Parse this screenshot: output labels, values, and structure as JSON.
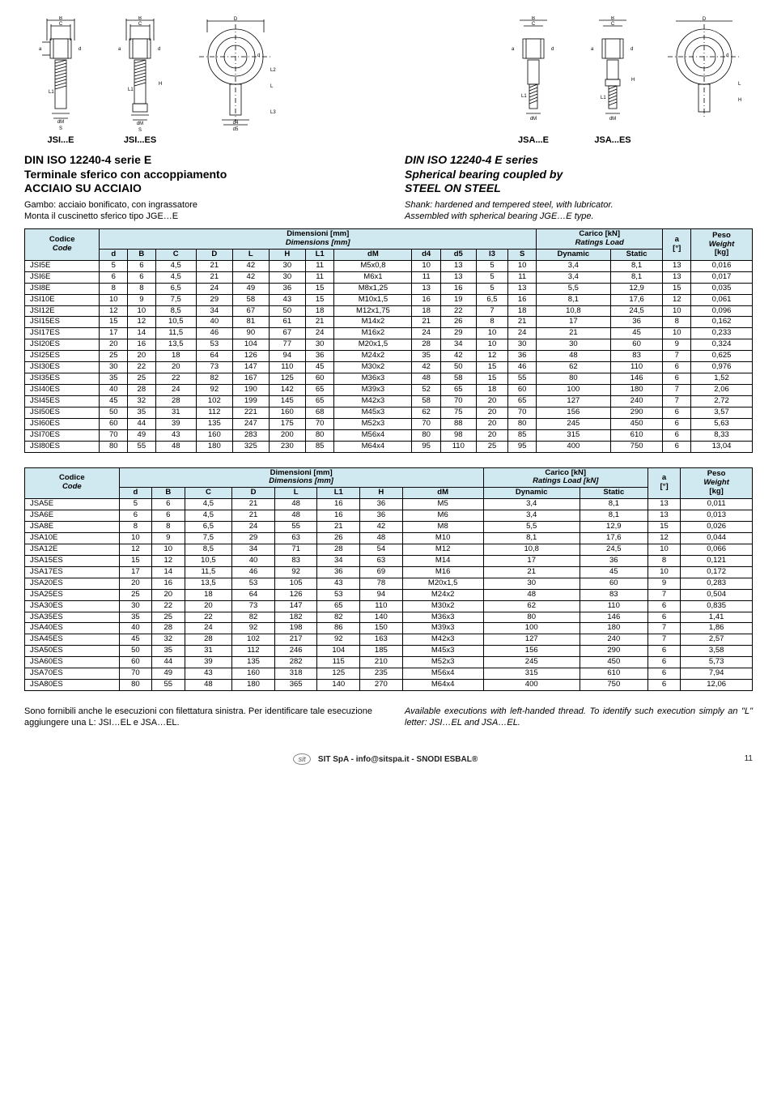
{
  "drawings": {
    "left_labels": [
      "JSI...E",
      "JSI...ES"
    ],
    "right_labels": [
      "JSA...E",
      "JSA...ES"
    ],
    "dim_labels": [
      "B",
      "C",
      "D",
      "d",
      "a",
      "L",
      "L1",
      "L2",
      "L3",
      "H",
      "dM",
      "S",
      "d4",
      "d5"
    ]
  },
  "header_left": {
    "title_line1": "DIN ISO 12240-4 serie E",
    "title_line2": "Terminale sferico con accoppiamento",
    "title_line3": "ACCIAIO SU ACCIAIO",
    "sub1": "Gambo: acciaio bonificato, con ingrassatore",
    "sub2": "Monta il cuscinetto sferico tipo JGE…E"
  },
  "header_right": {
    "title_line1": "DIN ISO 12240-4 E series",
    "title_line2": "Spherical bearing coupled by",
    "title_line3": "STEEL ON STEEL",
    "sub1": "Shank: hardened and tempered steel, with lubricator.",
    "sub2": "Assembled with spherical bearing JGE…E type."
  },
  "table1": {
    "head_code": "Codice",
    "head_code_en": "Code",
    "head_dim": "Dimensioni [mm]",
    "head_dim_en": "Dimensions [mm]",
    "head_load": "Carico [kN]",
    "head_load_en": "Ratings Load",
    "head_a": "a",
    "head_a_unit": "[°]",
    "head_peso": "Peso",
    "head_peso_en": "Weight",
    "head_peso_unit": "[kg]",
    "cols": [
      "d",
      "B",
      "C",
      "D",
      "L",
      "H",
      "L1",
      "dM",
      "d4",
      "d5",
      "l3",
      "S",
      "Dynamic",
      "Static"
    ],
    "rows": [
      [
        "JSI5E",
        "5",
        "6",
        "4,5",
        "21",
        "42",
        "30",
        "11",
        "M5x0,8",
        "10",
        "13",
        "5",
        "10",
        "3,4",
        "8,1",
        "13",
        "0,016"
      ],
      [
        "JSI6E",
        "6",
        "6",
        "4,5",
        "21",
        "42",
        "30",
        "11",
        "M6x1",
        "11",
        "13",
        "5",
        "11",
        "3,4",
        "8,1",
        "13",
        "0,017"
      ],
      [
        "JSI8E",
        "8",
        "8",
        "6,5",
        "24",
        "49",
        "36",
        "15",
        "M8x1,25",
        "13",
        "16",
        "5",
        "13",
        "5,5",
        "12,9",
        "15",
        "0,035"
      ],
      [
        "JSI10E",
        "10",
        "9",
        "7,5",
        "29",
        "58",
        "43",
        "15",
        "M10x1,5",
        "16",
        "19",
        "6,5",
        "16",
        "8,1",
        "17,6",
        "12",
        "0,061"
      ],
      [
        "JSI12E",
        "12",
        "10",
        "8,5",
        "34",
        "67",
        "50",
        "18",
        "M12x1,75",
        "18",
        "22",
        "7",
        "18",
        "10,8",
        "24,5",
        "10",
        "0,096"
      ],
      [
        "JSI15ES",
        "15",
        "12",
        "10,5",
        "40",
        "81",
        "61",
        "21",
        "M14x2",
        "21",
        "26",
        "8",
        "21",
        "17",
        "36",
        "8",
        "0,162"
      ],
      [
        "JSI17ES",
        "17",
        "14",
        "11,5",
        "46",
        "90",
        "67",
        "24",
        "M16x2",
        "24",
        "29",
        "10",
        "24",
        "21",
        "45",
        "10",
        "0,233"
      ],
      [
        "JSI20ES",
        "20",
        "16",
        "13,5",
        "53",
        "104",
        "77",
        "30",
        "M20x1,5",
        "28",
        "34",
        "10",
        "30",
        "30",
        "60",
        "9",
        "0,324"
      ],
      [
        "JSI25ES",
        "25",
        "20",
        "18",
        "64",
        "126",
        "94",
        "36",
        "M24x2",
        "35",
        "42",
        "12",
        "36",
        "48",
        "83",
        "7",
        "0,625"
      ],
      [
        "JSI30ES",
        "30",
        "22",
        "20",
        "73",
        "147",
        "110",
        "45",
        "M30x2",
        "42",
        "50",
        "15",
        "46",
        "62",
        "110",
        "6",
        "0,976"
      ],
      [
        "JSI35ES",
        "35",
        "25",
        "22",
        "82",
        "167",
        "125",
        "60",
        "M36x3",
        "48",
        "58",
        "15",
        "55",
        "80",
        "146",
        "6",
        "1,52"
      ],
      [
        "JSI40ES",
        "40",
        "28",
        "24",
        "92",
        "190",
        "142",
        "65",
        "M39x3",
        "52",
        "65",
        "18",
        "60",
        "100",
        "180",
        "7",
        "2,06"
      ],
      [
        "JSI45ES",
        "45",
        "32",
        "28",
        "102",
        "199",
        "145",
        "65",
        "M42x3",
        "58",
        "70",
        "20",
        "65",
        "127",
        "240",
        "7",
        "2,72"
      ],
      [
        "JSI50ES",
        "50",
        "35",
        "31",
        "112",
        "221",
        "160",
        "68",
        "M45x3",
        "62",
        "75",
        "20",
        "70",
        "156",
        "290",
        "6",
        "3,57"
      ],
      [
        "JSI60ES",
        "60",
        "44",
        "39",
        "135",
        "247",
        "175",
        "70",
        "M52x3",
        "70",
        "88",
        "20",
        "80",
        "245",
        "450",
        "6",
        "5,63"
      ],
      [
        "JSI70ES",
        "70",
        "49",
        "43",
        "160",
        "283",
        "200",
        "80",
        "M56x4",
        "80",
        "98",
        "20",
        "85",
        "315",
        "610",
        "6",
        "8,33"
      ],
      [
        "JSI80ES",
        "80",
        "55",
        "48",
        "180",
        "325",
        "230",
        "85",
        "M64x4",
        "95",
        "110",
        "25",
        "95",
        "400",
        "750",
        "6",
        "13,04"
      ]
    ]
  },
  "table2": {
    "head_code": "Codice",
    "head_code_en": "Code",
    "head_dim": "Dimensioni [mm]",
    "head_dim_en": "Dimensions [mm]",
    "head_load": "Carico [kN]",
    "head_load_en": "Ratings Load [kN]",
    "head_a": "a",
    "head_a_unit": "[°]",
    "head_peso": "Peso",
    "head_peso_en": "Weight",
    "head_peso_unit": "[kg]",
    "cols": [
      "d",
      "B",
      "C",
      "D",
      "L",
      "L1",
      "H",
      "dM",
      "Dynamic",
      "Static"
    ],
    "rows": [
      [
        "JSA5E",
        "5",
        "6",
        "4,5",
        "21",
        "48",
        "16",
        "36",
        "M5",
        "3,4",
        "8,1",
        "13",
        "0,011"
      ],
      [
        "JSA6E",
        "6",
        "6",
        "4,5",
        "21",
        "48",
        "16",
        "36",
        "M6",
        "3,4",
        "8,1",
        "13",
        "0,013"
      ],
      [
        "JSA8E",
        "8",
        "8",
        "6,5",
        "24",
        "55",
        "21",
        "42",
        "M8",
        "5,5",
        "12,9",
        "15",
        "0,026"
      ],
      [
        "JSA10E",
        "10",
        "9",
        "7,5",
        "29",
        "63",
        "26",
        "48",
        "M10",
        "8,1",
        "17,6",
        "12",
        "0,044"
      ],
      [
        "JSA12E",
        "12",
        "10",
        "8,5",
        "34",
        "71",
        "28",
        "54",
        "M12",
        "10,8",
        "24,5",
        "10",
        "0,066"
      ],
      [
        "JSA15ES",
        "15",
        "12",
        "10,5",
        "40",
        "83",
        "34",
        "63",
        "M14",
        "17",
        "36",
        "8",
        "0,121"
      ],
      [
        "JSA17ES",
        "17",
        "14",
        "11,5",
        "46",
        "92",
        "36",
        "69",
        "M16",
        "21",
        "45",
        "10",
        "0,172"
      ],
      [
        "JSA20ES",
        "20",
        "16",
        "13,5",
        "53",
        "105",
        "43",
        "78",
        "M20x1,5",
        "30",
        "60",
        "9",
        "0,283"
      ],
      [
        "JSA25ES",
        "25",
        "20",
        "18",
        "64",
        "126",
        "53",
        "94",
        "M24x2",
        "48",
        "83",
        "7",
        "0,504"
      ],
      [
        "JSA30ES",
        "30",
        "22",
        "20",
        "73",
        "147",
        "65",
        "110",
        "M30x2",
        "62",
        "110",
        "6",
        "0,835"
      ],
      [
        "JSA35ES",
        "35",
        "25",
        "22",
        "82",
        "182",
        "82",
        "140",
        "M36x3",
        "80",
        "146",
        "6",
        "1,41"
      ],
      [
        "JSA40ES",
        "40",
        "28",
        "24",
        "92",
        "198",
        "86",
        "150",
        "M39x3",
        "100",
        "180",
        "7",
        "1,86"
      ],
      [
        "JSA45ES",
        "45",
        "32",
        "28",
        "102",
        "217",
        "92",
        "163",
        "M42x3",
        "127",
        "240",
        "7",
        "2,57"
      ],
      [
        "JSA50ES",
        "50",
        "35",
        "31",
        "112",
        "246",
        "104",
        "185",
        "M45x3",
        "156",
        "290",
        "6",
        "3,58"
      ],
      [
        "JSA60ES",
        "60",
        "44",
        "39",
        "135",
        "282",
        "115",
        "210",
        "M52x3",
        "245",
        "450",
        "6",
        "5,73"
      ],
      [
        "JSA70ES",
        "70",
        "49",
        "43",
        "160",
        "318",
        "125",
        "235",
        "M56x4",
        "315",
        "610",
        "6",
        "7,94"
      ],
      [
        "JSA80ES",
        "80",
        "55",
        "48",
        "180",
        "365",
        "140",
        "270",
        "M64x4",
        "400",
        "750",
        "6",
        "12,06"
      ]
    ]
  },
  "footer": {
    "left": "Sono fornibili anche le esecuzioni con filettatura sinistra. Per identificare tale esecuzione aggiungere una L: JSI…EL   e JSA…EL.",
    "right": "Available executions with left-handed thread. To identify such execution simply an \"L\" letter: JSI…EL  and  JSA…EL."
  },
  "page_footer": {
    "center": "SIT SpA - info@sitspa.it - SNODI ESBAL®",
    "page_num": "11",
    "logo": "sit"
  },
  "colors": {
    "header_bg": "#d0e8f0",
    "border": "#000000",
    "text": "#000000"
  }
}
